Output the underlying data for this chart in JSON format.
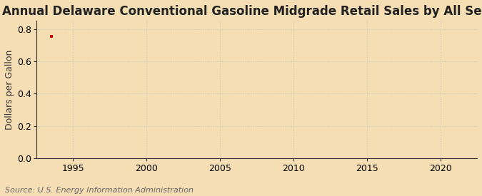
{
  "title": "Annual Delaware Conventional Gasoline Midgrade Retail Sales by All Sellers",
  "ylabel": "Dollars per Gallon",
  "source_text": "Source: U.S. Energy Information Administration",
  "background_color": "#f5deb3",
  "plot_bg_color": "#f5deb3",
  "data_x": [
    1993.5
  ],
  "data_y": [
    0.752
  ],
  "data_color": "#cc0000",
  "xlim": [
    1992.5,
    2022.5
  ],
  "ylim": [
    0.0,
    0.85
  ],
  "xticks": [
    1995,
    2000,
    2005,
    2010,
    2015,
    2020
  ],
  "yticks": [
    0.0,
    0.2,
    0.4,
    0.6,
    0.8
  ],
  "grid_color": "#c8c8c8",
  "grid_style": ":",
  "tick_label_fontsize": 9,
  "title_fontsize": 12,
  "ylabel_fontsize": 9,
  "source_fontsize": 8
}
